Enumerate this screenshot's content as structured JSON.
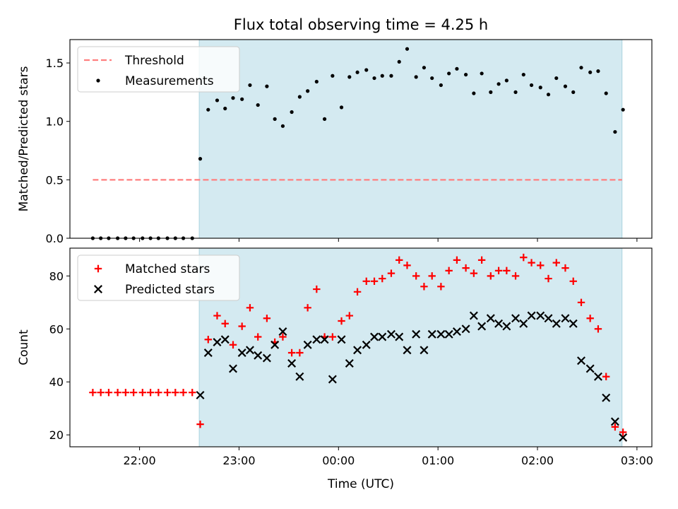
{
  "chart_data": {
    "title": "Flux total observing time = 4.25 h",
    "x_axis": {
      "label": "Time (UTC)",
      "range_hours": [
        -2.7,
        3.15
      ],
      "ticks": [
        {
          "value": -2,
          "label": "22:00"
        },
        {
          "value": -1,
          "label": "23:00"
        },
        {
          "value": 0,
          "label": "00:00"
        },
        {
          "value": 1,
          "label": "01:00"
        },
        {
          "value": 2,
          "label": "02:00"
        },
        {
          "value": 3,
          "label": "03:00"
        }
      ]
    },
    "observing_window": {
      "start": -1.4,
      "end": 2.85,
      "color": "#d4eaf1"
    },
    "panels": [
      {
        "type": "scatter",
        "ylabel": "Matched/Predicted stars",
        "ylim": [
          0,
          1.7
        ],
        "yticks": [
          {
            "value": 0,
            "label": "0.0"
          },
          {
            "value": 0.5,
            "label": "0.5"
          },
          {
            "value": 1.0,
            "label": "1.0"
          },
          {
            "value": 1.5,
            "label": "1.5"
          }
        ],
        "legend": {
          "placement": "upper-left",
          "entries": [
            "Threshold",
            "Measurements"
          ]
        },
        "series": [
          {
            "name": "Threshold",
            "style": "dashed-line",
            "color": "#ff7f7f",
            "x": [
              -2.47,
              2.85
            ],
            "y": [
              0.5,
              0.5
            ]
          },
          {
            "name": "Measurements",
            "style": "dot",
            "color": "#000000",
            "x": [
              -2.47,
              -2.39,
              -2.31,
              -2.22,
              -2.14,
              -2.06,
              -1.97,
              -1.89,
              -1.81,
              -1.72,
              -1.64,
              -1.56,
              -1.47,
              -1.39,
              -1.31,
              -1.22,
              -1.14,
              -1.06,
              -0.97,
              -0.89,
              -0.81,
              -0.72,
              -0.64,
              -0.56,
              -0.47,
              -0.39,
              -0.31,
              -0.22,
              -0.14,
              -0.06,
              0.03,
              0.11,
              0.19,
              0.28,
              0.36,
              0.44,
              0.53,
              0.61,
              0.69,
              0.78,
              0.86,
              0.94,
              1.03,
              1.11,
              1.19,
              1.28,
              1.36,
              1.44,
              1.53,
              1.61,
              1.69,
              1.78,
              1.86,
              1.94,
              2.03,
              2.11,
              2.19,
              2.28,
              2.36,
              2.44,
              2.53,
              2.61,
              2.69,
              2.78,
              2.86
            ],
            "y": [
              0,
              0,
              0,
              0,
              0,
              0,
              0,
              0,
              0,
              0,
              0,
              0,
              0,
              0.68,
              1.1,
              1.18,
              1.11,
              1.2,
              1.19,
              1.31,
              1.14,
              1.3,
              1.02,
              0.96,
              1.08,
              1.21,
              1.26,
              1.34,
              1.02,
              1.39,
              1.12,
              1.38,
              1.42,
              1.44,
              1.37,
              1.39,
              1.39,
              1.51,
              1.62,
              1.38,
              1.46,
              1.37,
              1.31,
              1.41,
              1.45,
              1.4,
              1.24,
              1.41,
              1.25,
              1.32,
              1.35,
              1.25,
              1.4,
              1.31,
              1.29,
              1.23,
              1.37,
              1.3,
              1.25,
              1.46,
              1.42,
              1.43,
              1.24,
              0.91,
              1.1
            ]
          }
        ]
      },
      {
        "type": "scatter",
        "ylabel": "Count",
        "ylim": [
          15.5,
          90.5
        ],
        "yticks": [
          {
            "value": 20,
            "label": "20"
          },
          {
            "value": 40,
            "label": "40"
          },
          {
            "value": 60,
            "label": "60"
          },
          {
            "value": 80,
            "label": "80"
          }
        ],
        "legend": {
          "placement": "upper-left",
          "entries": [
            "Matched stars",
            "Predicted stars"
          ]
        },
        "series": [
          {
            "name": "Matched stars",
            "style": "plus",
            "color": "#ff0000",
            "x": [
              -2.47,
              -2.39,
              -2.31,
              -2.22,
              -2.14,
              -2.06,
              -1.97,
              -1.89,
              -1.81,
              -1.72,
              -1.64,
              -1.56,
              -1.47,
              -1.39,
              -1.31,
              -1.22,
              -1.14,
              -1.06,
              -0.97,
              -0.89,
              -0.81,
              -0.72,
              -0.64,
              -0.56,
              -0.47,
              -0.39,
              -0.31,
              -0.22,
              -0.14,
              -0.06,
              0.03,
              0.11,
              0.19,
              0.28,
              0.36,
              0.44,
              0.53,
              0.61,
              0.69,
              0.78,
              0.86,
              0.94,
              1.03,
              1.11,
              1.19,
              1.28,
              1.36,
              1.44,
              1.53,
              1.61,
              1.69,
              1.78,
              1.86,
              1.94,
              2.03,
              2.11,
              2.19,
              2.28,
              2.36,
              2.44,
              2.53,
              2.61,
              2.69,
              2.78,
              2.86
            ],
            "y": [
              36,
              36,
              36,
              36,
              36,
              36,
              36,
              36,
              36,
              36,
              36,
              36,
              36,
              24,
              56,
              65,
              62,
              54,
              61,
              68,
              57,
              64,
              55,
              57,
              51,
              51,
              68,
              75,
              57,
              57,
              63,
              65,
              74,
              78,
              78,
              79,
              81,
              86,
              84,
              80,
              76,
              80,
              76,
              82,
              86,
              83,
              81,
              86,
              80,
              82,
              82,
              80,
              87,
              85,
              84,
              79,
              85,
              83,
              78,
              70,
              64,
              60,
              42,
              23,
              21
            ]
          },
          {
            "name": "Predicted stars",
            "style": "x",
            "color": "#000000",
            "x": [
              -1.39,
              -1.31,
              -1.22,
              -1.14,
              -1.06,
              -0.97,
              -0.89,
              -0.81,
              -0.72,
              -0.64,
              -0.56,
              -0.47,
              -0.39,
              -0.31,
              -0.22,
              -0.14,
              -0.06,
              0.03,
              0.11,
              0.19,
              0.28,
              0.36,
              0.44,
              0.53,
              0.61,
              0.69,
              0.78,
              0.86,
              0.94,
              1.03,
              1.11,
              1.19,
              1.28,
              1.36,
              1.44,
              1.53,
              1.61,
              1.69,
              1.78,
              1.86,
              1.94,
              2.03,
              2.11,
              2.19,
              2.28,
              2.36,
              2.44,
              2.53,
              2.61,
              2.69,
              2.78,
              2.86
            ],
            "y": [
              35,
              51,
              55,
              56,
              45,
              51,
              52,
              50,
              49,
              54,
              59,
              47,
              42,
              54,
              56,
              56,
              41,
              56,
              47,
              52,
              54,
              57,
              57,
              58,
              57,
              52,
              58,
              52,
              58,
              58,
              58,
              59,
              60,
              65,
              61,
              64,
              62,
              61,
              64,
              62,
              65,
              65,
              64,
              62,
              64,
              62,
              48,
              45,
              42,
              34,
              25,
              19
            ]
          }
        ]
      }
    ]
  }
}
